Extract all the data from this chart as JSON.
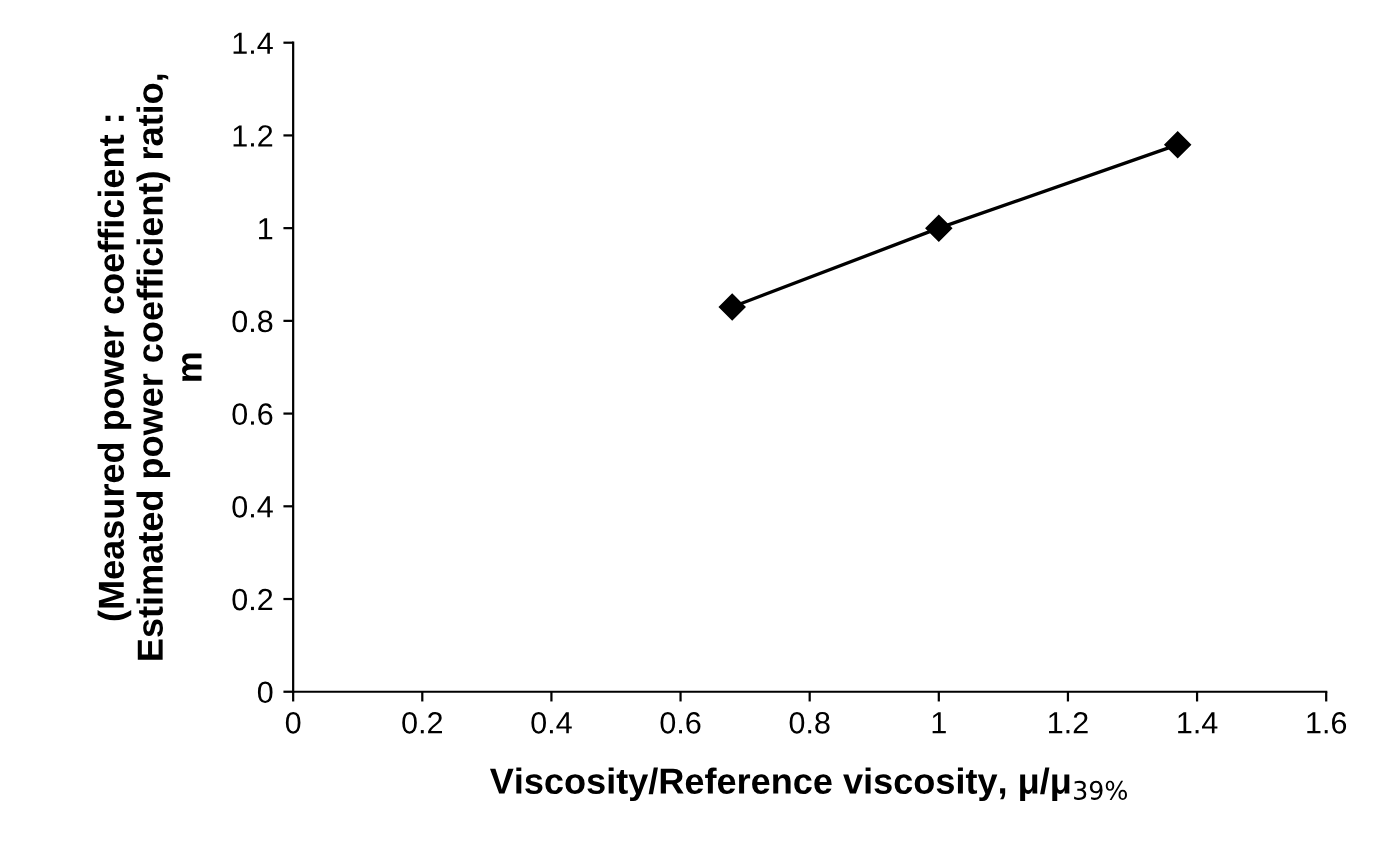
{
  "chart_data": {
    "type": "line",
    "xlabel": "Viscosity/Reference viscosity, μ/μ$_{39%}$",
    "ylabel": "(Measured power coefficient :\nEstimated power coefficient) ratio,\nm",
    "x": [
      0.68,
      1.0,
      1.37
    ],
    "series": [
      {
        "color": "#000000",
        "values": [
          0.83,
          1.0,
          1.18
        ]
      }
    ],
    "xlim": [
      0,
      1.6
    ],
    "xticks": [
      0,
      0.2,
      0.4,
      0.6,
      0.8,
      1,
      1.2,
      1.4,
      1.6
    ],
    "ylim": [
      0,
      1.4
    ],
    "yticks": [
      0,
      0.2,
      0.4,
      0.6,
      0.8,
      1,
      1.2,
      1.4
    ],
    "marker": "diamond",
    "line_style": "solid",
    "grid": false,
    "legend": false
  }
}
